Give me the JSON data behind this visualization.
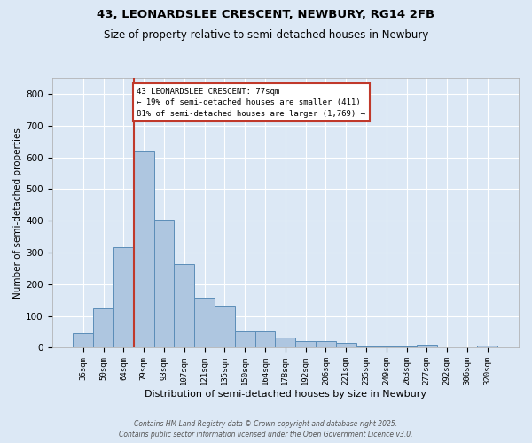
{
  "title_line1": "43, LEONARDSLEE CRESCENT, NEWBURY, RG14 2FB",
  "title_line2": "Size of property relative to semi-detached houses in Newbury",
  "xlabel": "Distribution of semi-detached houses by size in Newbury",
  "ylabel": "Number of semi-detached properties",
  "categories": [
    "36sqm",
    "50sqm",
    "64sqm",
    "79sqm",
    "93sqm",
    "107sqm",
    "121sqm",
    "135sqm",
    "150sqm",
    "164sqm",
    "178sqm",
    "192sqm",
    "206sqm",
    "221sqm",
    "235sqm",
    "249sqm",
    "263sqm",
    "277sqm",
    "292sqm",
    "306sqm",
    "320sqm"
  ],
  "values": [
    47,
    125,
    318,
    622,
    402,
    265,
    158,
    133,
    52,
    52,
    33,
    20,
    20,
    14,
    5,
    5,
    5,
    9,
    2,
    2,
    8
  ],
  "bar_color": "#aec6e0",
  "bar_edge_color": "#5b8db8",
  "background_color": "#dce8f5",
  "grid_color": "#ffffff",
  "vline_color": "#c0392b",
  "annotation_box_color": "#ffffff",
  "annotation_box_edge_color": "#c0392b",
  "annotation_text": "43 LEONARDSLEE CRESCENT: 77sqm\n← 19% of semi-detached houses are smaller (411)\n81% of semi-detached houses are larger (1,769) →",
  "ylim": [
    0,
    850
  ],
  "yticks": [
    0,
    100,
    200,
    300,
    400,
    500,
    600,
    700,
    800
  ],
  "footnote_line1": "Contains HM Land Registry data © Crown copyright and database right 2025.",
  "footnote_line2": "Contains public sector information licensed under the Open Government Licence v3.0."
}
